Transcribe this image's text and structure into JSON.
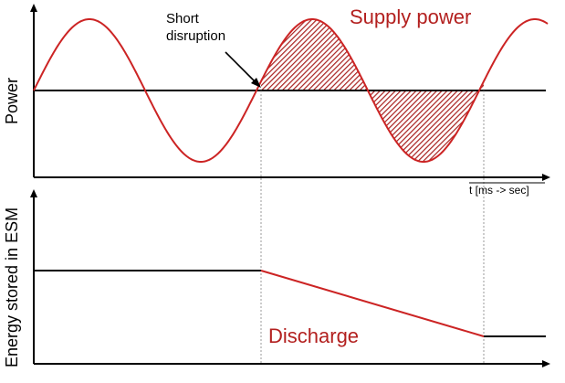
{
  "labels": {
    "annotation_line1": "Short",
    "annotation_line2": "disruption",
    "supply_power": "Supply power",
    "time_axis": "t [ms -> sec]",
    "power_axis": "Power",
    "energy_axis": "Energy stored in ESM",
    "discharge": "Discharge"
  },
  "colors": {
    "curve": "#cc2424",
    "hatch": "#a8201f",
    "label_red": "#b3201f",
    "axis": "#000000",
    "guide": "#9a9a9a"
  }
}
